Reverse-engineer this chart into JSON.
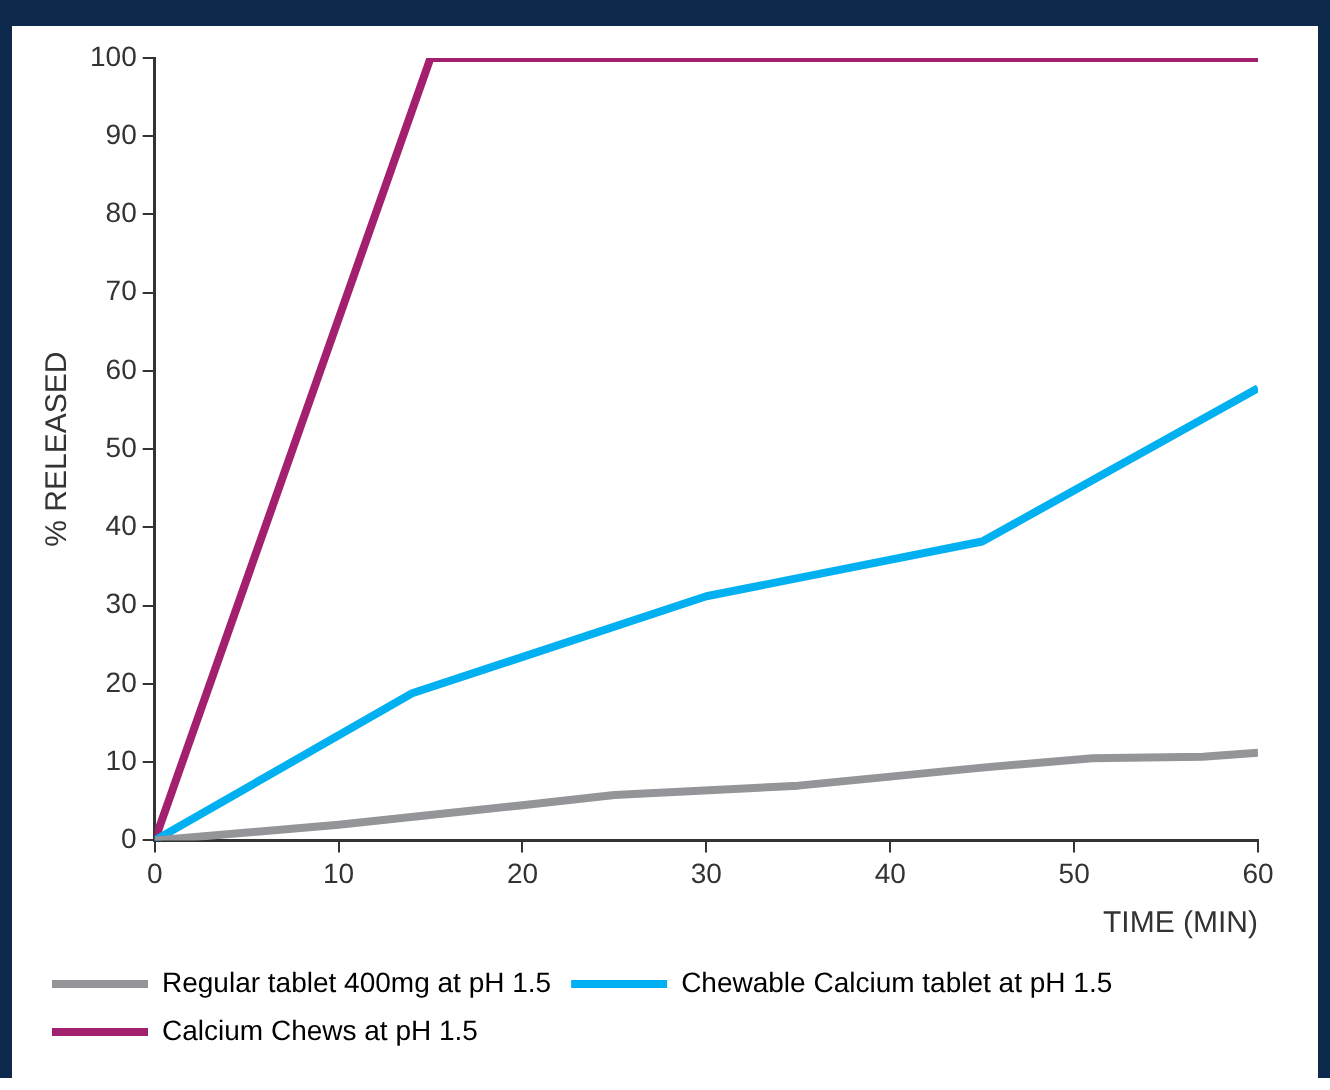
{
  "chart_data": {
    "type": "line",
    "xlabel": "TIME (MIN)",
    "ylabel": "% RELEASED",
    "xlim": [
      0,
      60
    ],
    "xticks": [
      0,
      10,
      20,
      30,
      40,
      50,
      60
    ],
    "ylim": [
      0,
      100
    ],
    "yticks": [
      0,
      10,
      20,
      30,
      40,
      50,
      60,
      70,
      80,
      90,
      100
    ],
    "grid": false,
    "legend": "bottom",
    "marker": "none",
    "line_style": "solid",
    "series": [
      {
        "name": "Regular tablet 400mg at pH 1.5",
        "color": "#939598",
        "x": [
          0,
          10,
          20,
          25,
          35,
          45,
          51,
          57,
          60
        ],
        "values": [
          0,
          2,
          4.5,
          5.8,
          7,
          9.3,
          10.5,
          10.7,
          11.2
        ]
      },
      {
        "name": "Chewable Calcium tablet at pH 1.5",
        "color": "#00b0f0",
        "x": [
          0,
          14,
          30,
          45,
          60
        ],
        "values": [
          0,
          18.8,
          31.2,
          38.2,
          57.8
        ]
      },
      {
        "name": "Calcium Chews at pH 1.5",
        "color": "#a3206e",
        "x": [
          0,
          15,
          60
        ],
        "values": [
          0,
          100,
          100
        ]
      }
    ]
  }
}
